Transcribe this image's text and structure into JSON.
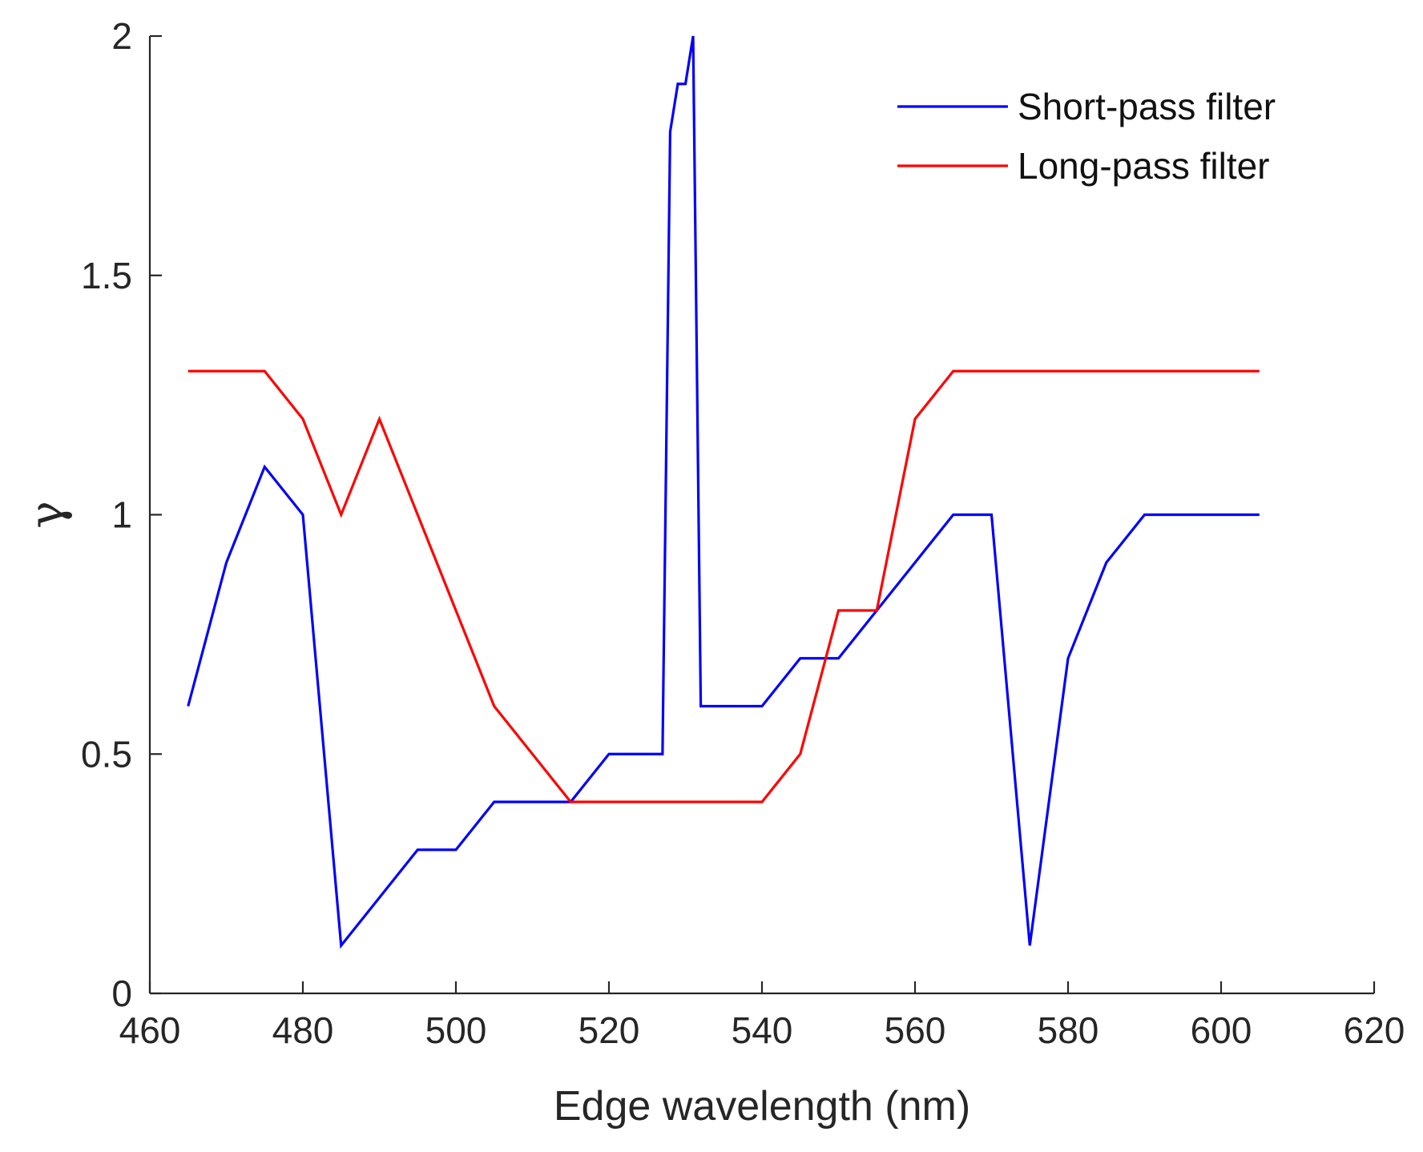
{
  "chart_data": {
    "type": "line",
    "title": "",
    "xlabel": "Edge wavelength (nm)",
    "ylabel": "γ",
    "xlim": [
      460,
      620
    ],
    "ylim": [
      0,
      2
    ],
    "xticks": [
      460,
      480,
      500,
      520,
      540,
      560,
      580,
      600,
      620
    ],
    "yticks": [
      0,
      0.5,
      1,
      1.5,
      2
    ],
    "xtick_labels": [
      "460",
      "480",
      "500",
      "520",
      "540",
      "560",
      "580",
      "600",
      "620"
    ],
    "ytick_labels": [
      "0",
      "0.5",
      "1",
      "1.5",
      "2"
    ],
    "grid": false,
    "legend": {
      "position": "top-right"
    },
    "series": [
      {
        "name": "Short-pass filter",
        "color": "#0000ff",
        "points": [
          [
            465,
            0.6
          ],
          [
            470,
            0.9
          ],
          [
            475,
            1.1
          ],
          [
            480,
            1.0
          ],
          [
            485,
            0.1
          ],
          [
            490,
            0.2
          ],
          [
            495,
            0.3
          ],
          [
            500,
            0.3
          ],
          [
            505,
            0.4
          ],
          [
            510,
            0.4
          ],
          [
            515,
            0.4
          ],
          [
            520,
            0.5
          ],
          [
            525,
            0.5
          ],
          [
            527,
            0.5
          ],
          [
            528,
            1.8
          ],
          [
            529,
            1.9
          ],
          [
            530,
            1.9
          ],
          [
            531,
            2.0
          ],
          [
            532,
            0.6
          ],
          [
            535,
            0.6
          ],
          [
            540,
            0.6
          ],
          [
            545,
            0.7
          ],
          [
            550,
            0.7
          ],
          [
            555,
            0.8
          ],
          [
            560,
            0.9
          ],
          [
            565,
            1.0
          ],
          [
            570,
            1.0
          ],
          [
            575,
            0.1
          ],
          [
            580,
            0.7
          ],
          [
            585,
            0.9
          ],
          [
            590,
            1.0
          ],
          [
            595,
            1.0
          ],
          [
            600,
            1.0
          ],
          [
            605,
            1.0
          ]
        ]
      },
      {
        "name": "Long-pass filter",
        "color": "#ff0000",
        "points": [
          [
            465,
            1.3
          ],
          [
            470,
            1.3
          ],
          [
            475,
            1.3
          ],
          [
            480,
            1.2
          ],
          [
            485,
            1.0
          ],
          [
            490,
            1.2
          ],
          [
            495,
            1.0
          ],
          [
            500,
            0.8
          ],
          [
            505,
            0.6
          ],
          [
            510,
            0.5
          ],
          [
            515,
            0.4
          ],
          [
            520,
            0.4
          ],
          [
            525,
            0.4
          ],
          [
            530,
            0.4
          ],
          [
            535,
            0.4
          ],
          [
            540,
            0.4
          ],
          [
            545,
            0.5
          ],
          [
            550,
            0.8
          ],
          [
            555,
            0.8
          ],
          [
            560,
            1.2
          ],
          [
            565,
            1.3
          ],
          [
            570,
            1.3
          ],
          [
            575,
            1.3
          ],
          [
            580,
            1.3
          ],
          [
            585,
            1.3
          ],
          [
            590,
            1.3
          ],
          [
            595,
            1.3
          ],
          [
            600,
            1.3
          ],
          [
            605,
            1.3
          ]
        ]
      }
    ]
  }
}
